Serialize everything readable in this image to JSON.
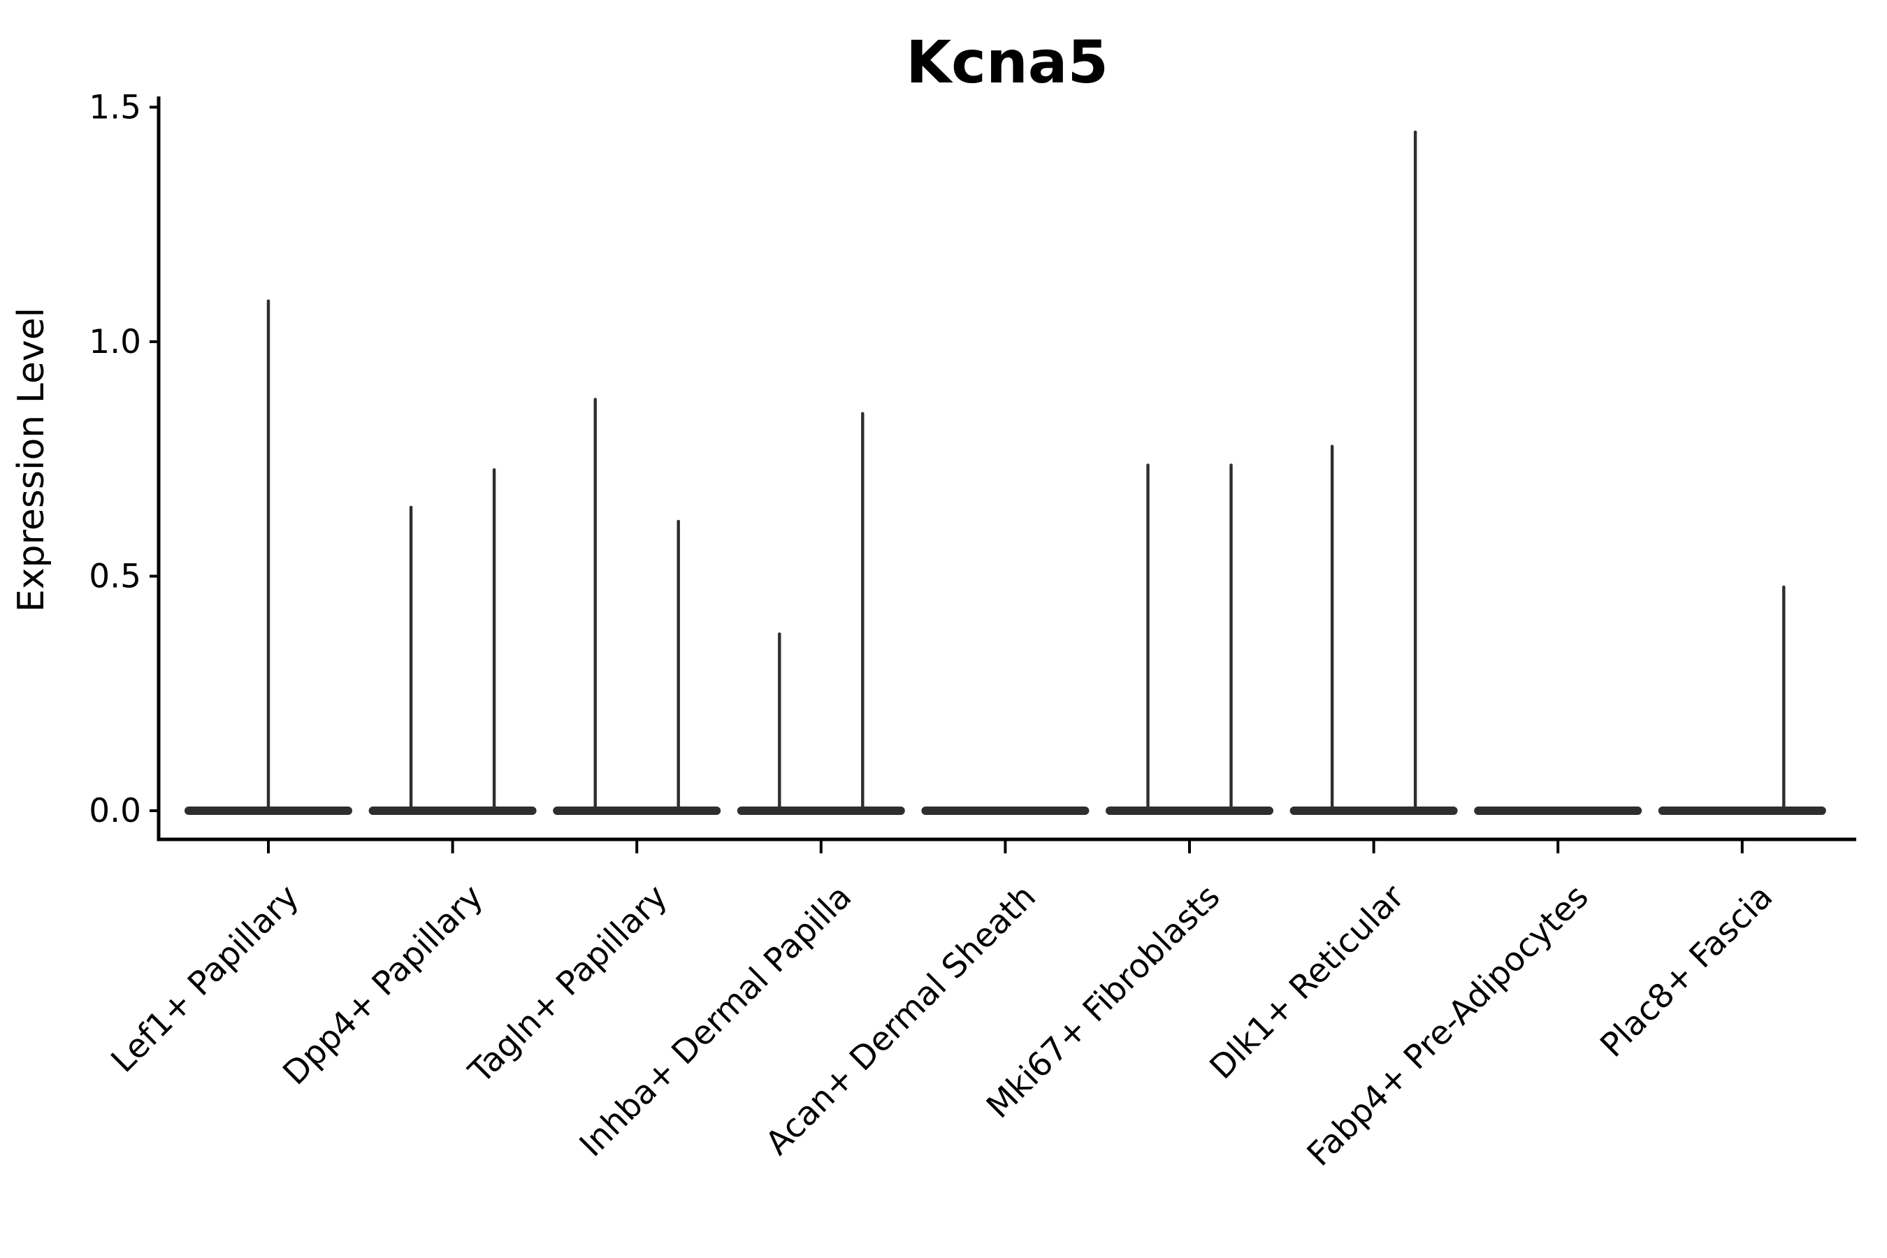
{
  "chart_data": {
    "type": "violin",
    "title": "Kcna5",
    "xlabel": "",
    "ylabel": "Expression Level",
    "ylim": [
      -0.06,
      1.52
    ],
    "yticks": [
      "0.0",
      "0.5",
      "1.0",
      "1.5"
    ],
    "grid": false,
    "legend": "none",
    "background": "#ffffff",
    "colors": {
      "violin": "#2e2e2e",
      "axis": "#000000",
      "text": "#000000"
    },
    "categories": [
      "Lef1+ Papillary",
      "Dpp4+ Papillary",
      "Tagln+ Papillary",
      "Inhba+ Dermal Papilla",
      "Acan+ Dermal Sheath",
      "Mki67+ Fibroblasts",
      "Dlk1+ Reticular",
      "Fabp4+ Pre-Adipocytes",
      "Plac8+ Fascia"
    ],
    "groups": [
      {
        "label": "Lef1+ Papillary",
        "base_value": 0.0,
        "spikes": [
          {
            "pos": "center",
            "value": 1.09
          }
        ]
      },
      {
        "label": "Dpp4+ Papillary",
        "base_value": 0.0,
        "spikes": [
          {
            "pos": "left",
            "value": 0.65
          },
          {
            "pos": "right",
            "value": 0.73
          }
        ]
      },
      {
        "label": "Tagln+ Papillary",
        "base_value": 0.0,
        "spikes": [
          {
            "pos": "left",
            "value": 0.88
          },
          {
            "pos": "right",
            "value": 0.62
          }
        ]
      },
      {
        "label": "Inhba+ Dermal Papilla",
        "base_value": 0.0,
        "spikes": [
          {
            "pos": "left",
            "value": 0.38
          },
          {
            "pos": "right",
            "value": 0.85
          }
        ]
      },
      {
        "label": "Acan+ Dermal Sheath",
        "base_value": 0.0,
        "spikes": []
      },
      {
        "label": "Mki67+ Fibroblasts",
        "base_value": 0.0,
        "spikes": [
          {
            "pos": "left",
            "value": 0.74
          },
          {
            "pos": "right",
            "value": 0.74
          }
        ]
      },
      {
        "label": "Dlk1+ Reticular",
        "base_value": 0.0,
        "spikes": [
          {
            "pos": "left",
            "value": 0.78
          },
          {
            "pos": "right",
            "value": 1.45
          }
        ]
      },
      {
        "label": "Fabp4+ Pre-Adipocytes",
        "base_value": 0.0,
        "spikes": []
      },
      {
        "label": "Plac8+ Fascia",
        "base_value": 0.0,
        "spikes": [
          {
            "pos": "right",
            "value": 0.48
          }
        ]
      }
    ]
  }
}
